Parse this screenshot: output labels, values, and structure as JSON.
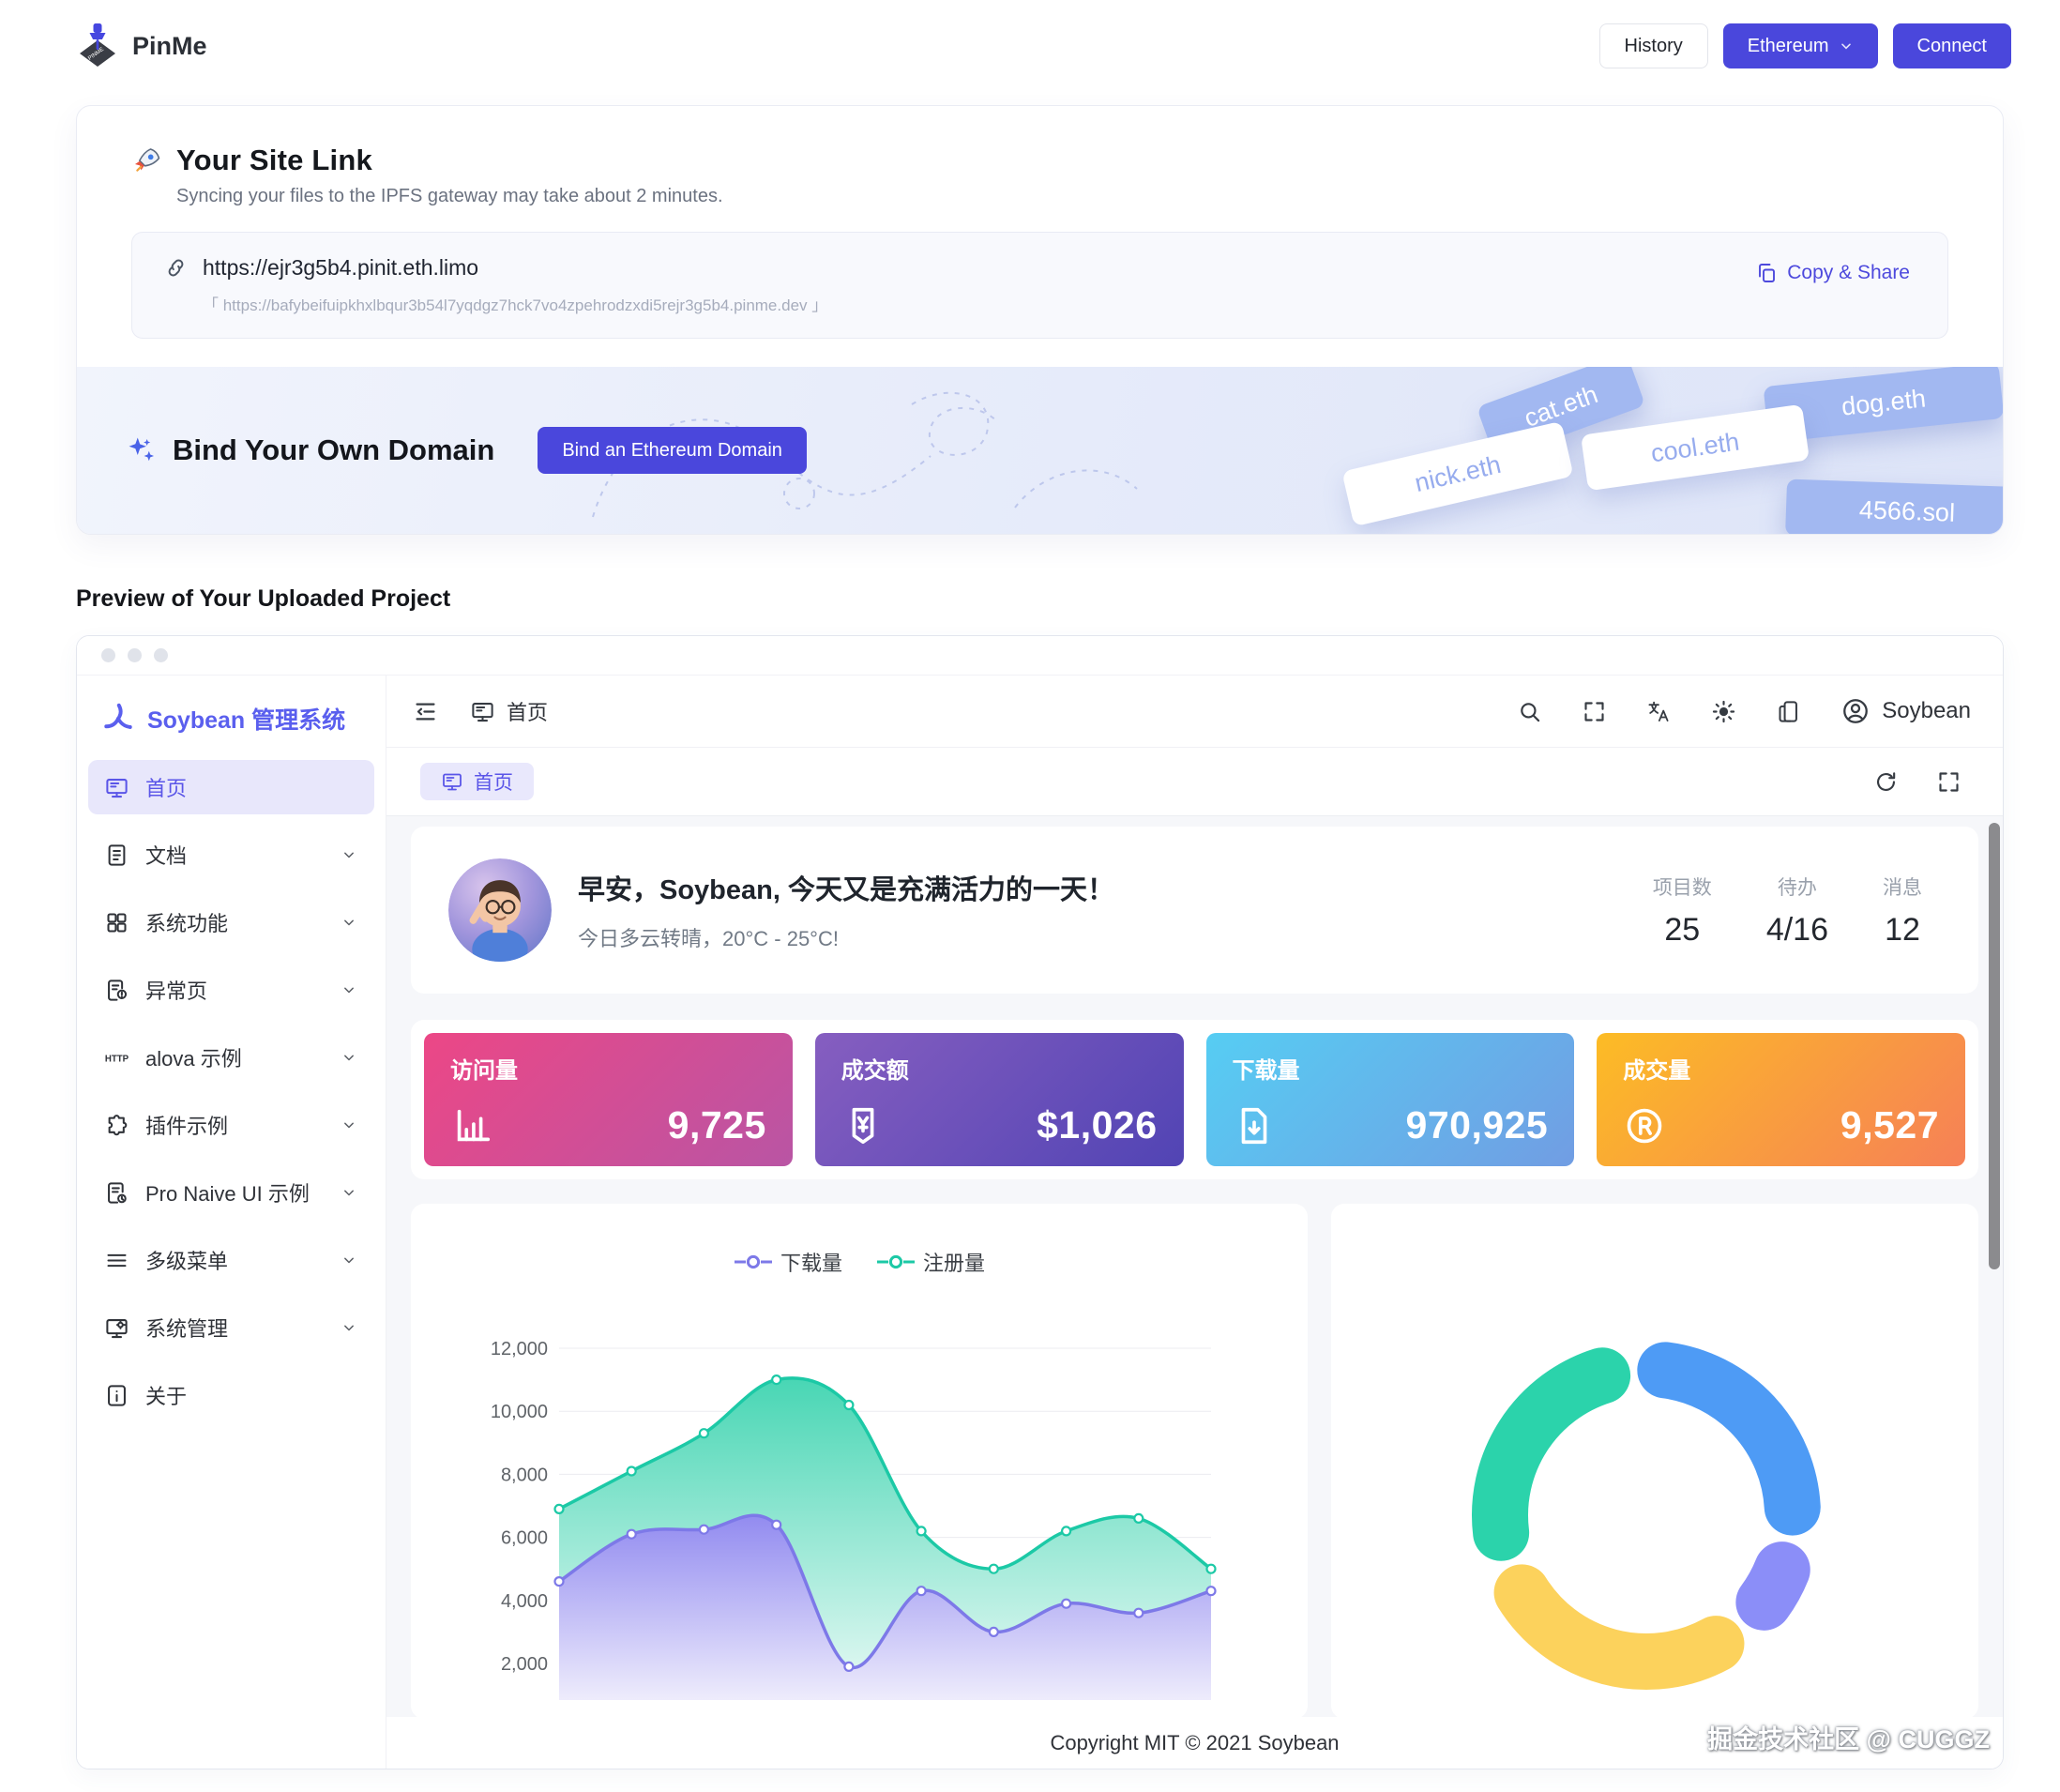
{
  "header": {
    "brand": "PinMe",
    "history_label": "History",
    "network_label": "Ethereum",
    "connect_label": "Connect"
  },
  "site_link": {
    "title": "Your Site Link",
    "subtitle": "Syncing your files to the IPFS gateway may take about 2 minutes.",
    "url": "https://ejr3g5b4.pinit.eth.limo",
    "ipfs_url": "「 https://bafybeifuipkhxlbqur3b54l7yqdgz7hck7vo4zpehrodzxdi5rejr3g5b4.pinme.dev 」",
    "copy_share_label": "Copy & Share"
  },
  "bind_domain": {
    "title": "Bind Your Own Domain",
    "button_label": "Bind an Ethereum Domain",
    "domain_tags": [
      {
        "label": "cat.eth",
        "style": "blue"
      },
      {
        "label": "dog.eth",
        "style": "blue"
      },
      {
        "label": "nick.eth",
        "style": "white"
      },
      {
        "label": "cool.eth",
        "style": "white"
      },
      {
        "label": "4566.sol",
        "style": "blue"
      }
    ]
  },
  "preview": {
    "heading": "Preview of Your Uploaded Project",
    "app": {
      "brand": "Soybean 管理系统",
      "home_label": "首页",
      "user_name": "Soybean",
      "sidebar": [
        {
          "label": "首页",
          "icon": "monitor-dashboard-icon",
          "active": true,
          "expandable": false
        },
        {
          "label": "文档",
          "icon": "document-icon",
          "active": false,
          "expandable": true
        },
        {
          "label": "系统功能",
          "icon": "apps-grid-icon",
          "active": false,
          "expandable": true
        },
        {
          "label": "异常页",
          "icon": "page-error-icon",
          "active": false,
          "expandable": true
        },
        {
          "label": "alova 示例",
          "icon": "http-icon",
          "active": false,
          "expandable": true
        },
        {
          "label": "插件示例",
          "icon": "puzzle-icon",
          "active": false,
          "expandable": true
        },
        {
          "label": "Pro Naive UI 示例",
          "icon": "document-badge-icon",
          "active": false,
          "expandable": true
        },
        {
          "label": "多级菜单",
          "icon": "menu-lines-icon",
          "active": false,
          "expandable": true
        },
        {
          "label": "系统管理",
          "icon": "system-manage-icon",
          "active": false,
          "expandable": true
        },
        {
          "label": "关于",
          "icon": "info-icon",
          "active": false,
          "expandable": false
        }
      ],
      "greeting": {
        "title": "早安，Soybean, 今天又是充满活力的一天！",
        "subtitle": "今日多云转晴，20°C - 25°C!",
        "stats": [
          {
            "label": "项目数",
            "value": "25"
          },
          {
            "label": "待办",
            "value": "4/16"
          },
          {
            "label": "消息",
            "value": "12"
          }
        ]
      },
      "stat_cards": [
        {
          "label": "访问量",
          "value": "9,725",
          "icon": "bar-chart-icon",
          "gradient": [
            "#ec4786",
            "#b955a4"
          ]
        },
        {
          "label": "成交额",
          "value": "$1,026",
          "icon": "yen-badge-icon",
          "gradient": [
            "#865ec0",
            "#5144b4"
          ]
        },
        {
          "label": "下载量",
          "value": "970,925",
          "icon": "download-file-icon",
          "gradient": [
            "#56cdf3",
            "#719de3"
          ]
        },
        {
          "label": "成交量",
          "value": "9,527",
          "icon": "registered-icon",
          "gradient": [
            "#fcbc25",
            "#f68057"
          ]
        }
      ],
      "footer": "Copyright MIT © 2021 Soybean"
    }
  },
  "chart_data": [
    {
      "type": "area",
      "title": "",
      "legend_position": "top",
      "grid": true,
      "x_axis_labels_visible": false,
      "y_ticks": [
        2000,
        4000,
        6000,
        8000,
        10000,
        12000
      ],
      "ylim": [
        0,
        13000
      ],
      "series": [
        {
          "name": "下载量",
          "color": "#7d79e8",
          "fill_top": "#928bf0",
          "fill_bottom": "#eeecfc",
          "values": [
            4600,
            6100,
            6250,
            6400,
            1900,
            4300,
            3000,
            3900,
            3600,
            4300
          ]
        },
        {
          "name": "注册量",
          "color": "#1cc9a6",
          "fill_top": "#48d6b4",
          "fill_bottom": "#eafaf6",
          "values": [
            6900,
            8100,
            9300,
            11000,
            10200,
            6200,
            5000,
            6200,
            6600,
            5000
          ]
        }
      ]
    },
    {
      "type": "pie",
      "donut": true,
      "labels_visible": false,
      "start_from_top_deg": -5,
      "segments": [
        {
          "color": "#4e9bf5",
          "percent": 29
        },
        {
          "color": "#8b8ef8",
          "percent": 11
        },
        {
          "color": "#fcd25c",
          "percent": 31
        },
        {
          "color": "#2bd3ab",
          "percent": 29
        }
      ]
    }
  ],
  "watermark": "掘金技术社区 @ CUGGZ",
  "colors": {
    "primary": "#4a47dc",
    "admin_primary": "#5a5fee",
    "active_menu_bg": "#e8e7fb",
    "content_bg": "#f6f7fa"
  }
}
